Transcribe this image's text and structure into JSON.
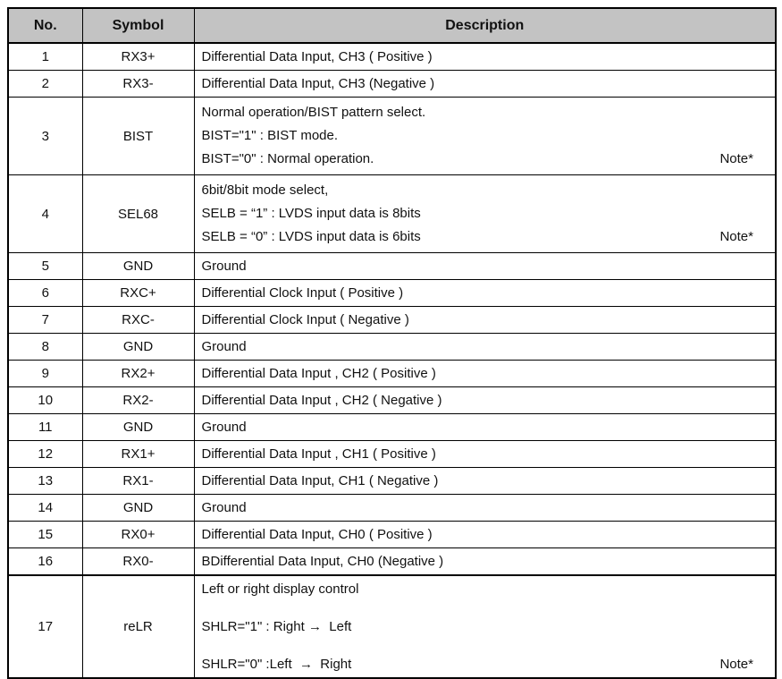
{
  "table": {
    "headers": [
      "No.",
      "Symbol",
      "Description"
    ],
    "rows": [
      {
        "no": "1",
        "symbol": "RX3+",
        "lines": [
          "Differential Data Input, CH3 ( Positive )"
        ],
        "note": ""
      },
      {
        "no": "2",
        "symbol": "RX3-",
        "lines": [
          "Differential Data Input, CH3 (Negative )"
        ],
        "note": ""
      },
      {
        "no": "3",
        "symbol": "BIST",
        "lines": [
          "Normal operation/BIST pattern select.",
          "BIST=\"1\" : BIST mode.",
          "BIST=\"0\" : Normal operation."
        ],
        "note": "Note*"
      },
      {
        "no": "4",
        "symbol": "SEL68",
        "lines": [
          "6bit/8bit mode select,",
          "SELB = “1” : LVDS input data is 8bits",
          "SELB = “0” : LVDS input data is 6bits"
        ],
        "note": "Note*"
      },
      {
        "no": "5",
        "symbol": "GND",
        "lines": [
          "Ground"
        ],
        "note": ""
      },
      {
        "no": "6",
        "symbol": "RXC+",
        "lines": [
          "Differential Clock Input ( Positive )"
        ],
        "note": ""
      },
      {
        "no": "7",
        "symbol": "RXC-",
        "lines": [
          "Differential Clock Input ( Negative )"
        ],
        "note": ""
      },
      {
        "no": "8",
        "symbol": "GND",
        "lines": [
          "Ground"
        ],
        "note": ""
      },
      {
        "no": "9",
        "symbol": "RX2+",
        "lines": [
          "Differential Data Input , CH2 ( Positive )"
        ],
        "note": ""
      },
      {
        "no": "10",
        "symbol": "RX2-",
        "lines": [
          "Differential Data Input , CH2 ( Negative )"
        ],
        "note": ""
      },
      {
        "no": "11",
        "symbol": "GND",
        "lines": [
          "Ground"
        ],
        "note": ""
      },
      {
        "no": "12",
        "symbol": "RX1+",
        "lines": [
          "Differential Data Input , CH1 ( Positive )"
        ],
        "note": ""
      },
      {
        "no": "13",
        "symbol": "RX1-",
        "lines": [
          "Differential Data Input, CH1 ( Negative )"
        ],
        "note": ""
      },
      {
        "no": "14",
        "symbol": "GND",
        "lines": [
          "Ground"
        ],
        "note": ""
      },
      {
        "no": "15",
        "symbol": "RX0+",
        "lines": [
          "Differential Data Input, CH0 ( Positive )"
        ],
        "note": ""
      },
      {
        "no": "16",
        "symbol": "RX0-",
        "lines": [
          "BDifferential Data Input, CH0 (Negative )"
        ],
        "note": ""
      },
      {
        "no": "17",
        "symbol": "reLR",
        "lines": [
          "Left or right display control",
          "",
          "SHLR=\"1\" : Right →  Left",
          "",
          "SHLR=\"0\" :Left  →  Right"
        ],
        "note": "Note*"
      }
    ]
  }
}
